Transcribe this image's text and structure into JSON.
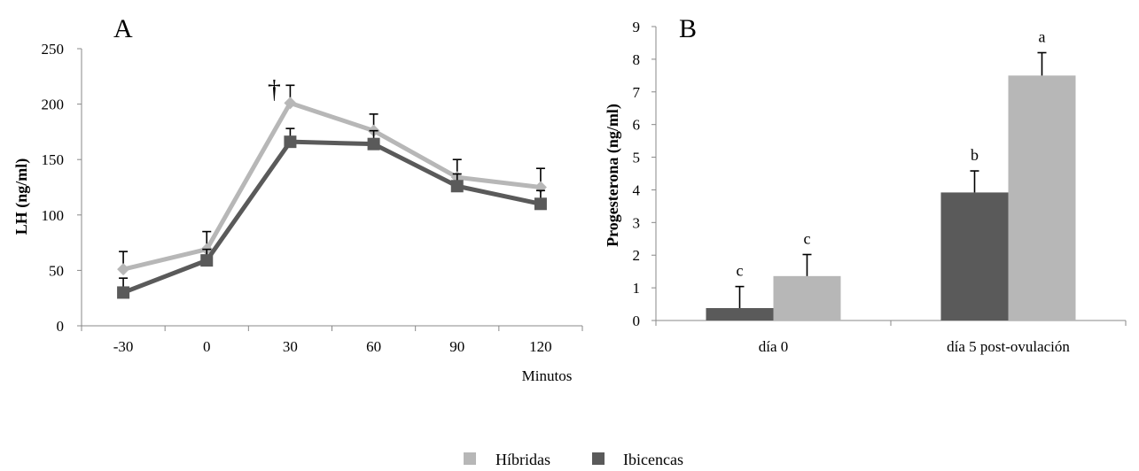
{
  "colors": {
    "hibridas": "#b7b7b7",
    "ibicencas": "#5a5a5a"
  },
  "legend": [
    {
      "label": "Híbridas",
      "color": "#b7b7b7"
    },
    {
      "label": "Ibicencas",
      "color": "#5a5a5a"
    }
  ],
  "chart_data": [
    {
      "type": "line",
      "panel_label": "A",
      "ylabel": "LH (ng/ml)",
      "xlabel": "Minutos",
      "x": [
        -30,
        0,
        30,
        60,
        90,
        120
      ],
      "x_tick_labels": [
        "-30",
        "0",
        "30",
        "60",
        "90",
        "120"
      ],
      "ylim": [
        0,
        250
      ],
      "y_ticks": [
        0,
        50,
        100,
        150,
        200,
        250
      ],
      "grid": false,
      "annotations": [
        {
          "text": "†",
          "x": 30
        }
      ],
      "series": [
        {
          "name": "Híbridas",
          "color": "#b7b7b7",
          "marker": "diamond",
          "values": [
            51,
            69,
            201,
            176,
            134,
            125
          ],
          "error": [
            16,
            16,
            16,
            15,
            16,
            17
          ]
        },
        {
          "name": "Ibicencas",
          "color": "#5a5a5a",
          "marker": "square",
          "values": [
            30,
            59,
            166,
            164,
            126,
            110
          ],
          "error": [
            13,
            10,
            12,
            12,
            11,
            12
          ]
        }
      ]
    },
    {
      "type": "bar",
      "panel_label": "B",
      "ylabel": "Progesterona (ng/ml)",
      "categories": [
        "día 0",
        "día 5 post-ovulación"
      ],
      "ylim": [
        0,
        9
      ],
      "y_ticks": [
        0,
        1,
        2,
        3,
        4,
        5,
        6,
        7,
        8,
        9
      ],
      "grid": false,
      "series": [
        {
          "name": "Ibicencas",
          "color": "#5a5a5a",
          "values": [
            0.38,
            3.92
          ],
          "error": [
            0.66,
            0.66
          ],
          "labels": [
            "c",
            "b"
          ]
        },
        {
          "name": "Híbridas",
          "color": "#b7b7b7",
          "values": [
            1.36,
            7.5
          ],
          "error": [
            0.66,
            0.7
          ],
          "labels": [
            "c",
            "a"
          ]
        }
      ]
    }
  ]
}
